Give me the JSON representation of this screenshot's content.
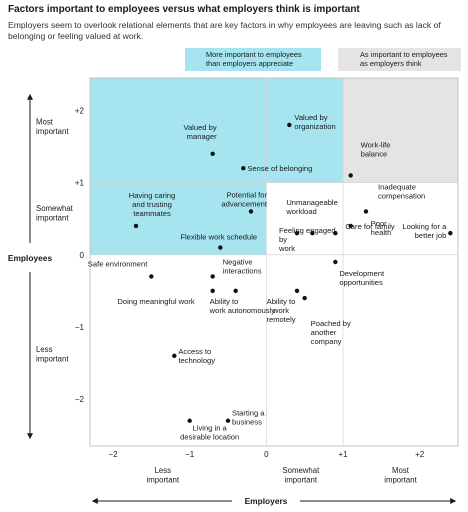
{
  "title": "Factors important to employees versus what employers think is important",
  "subtitle": "Employers seem to overlook relational elements that are key factors in why employees are leaving such as lack of belonging or feeling valued at work.",
  "legend": [
    {
      "label": "More important to employees than employers appreciate",
      "color": "#a6e4f0"
    },
    {
      "label": "As important to employees as employers think",
      "color": "#e4e4e4"
    }
  ],
  "chart_data": {
    "type": "scatter",
    "xlabel": "Employers",
    "ylabel": "Employees",
    "xlim": [
      -2.3,
      2.5
    ],
    "ylim": [
      -2.65,
      2.45
    ],
    "x_ticks": [
      -2,
      -1,
      0,
      1,
      2
    ],
    "x_tick_labels": [
      "−2",
      "−1",
      "0",
      "+1",
      "+2"
    ],
    "y_ticks": [
      2,
      1,
      0,
      -1,
      -2
    ],
    "y_tick_labels": [
      "+2",
      "+1",
      "0",
      "−1",
      "−2"
    ],
    "x_categories": [
      "Less important",
      "Somewhat important",
      "Most important"
    ],
    "y_categories": [
      "Most important",
      "Somewhat important",
      "Less important"
    ],
    "regions": [
      {
        "name": "More important to employees than employers appreciate",
        "color": "#a6e4f0",
        "x": [
          -2.3,
          1.0
        ],
        "y": [
          1.0,
          2.45
        ]
      },
      {
        "name": "More important to employees than employers appreciate",
        "color": "#a6e4f0",
        "x": [
          -2.3,
          0.0
        ],
        "y": [
          0.0,
          1.0
        ]
      },
      {
        "name": "As important to employees as employers think",
        "color": "#e4e4e4",
        "x": [
          1.0,
          2.5
        ],
        "y": [
          1.0,
          2.45
        ]
      }
    ],
    "points": [
      {
        "label": "Valued by organization",
        "x": 0.3,
        "y": 1.8
      },
      {
        "label": "Valued by manager",
        "x": -0.7,
        "y": 1.4
      },
      {
        "label": "Sense of belonging",
        "x": -0.3,
        "y": 1.2
      },
      {
        "label": "Work-life balance",
        "x": 1.1,
        "y": 1.1
      },
      {
        "label": "Potential for advancement",
        "x": -0.2,
        "y": 0.6
      },
      {
        "label": "Inadequate compensation",
        "x": 1.3,
        "y": 0.6
      },
      {
        "label": "Having caring and trusting teammates",
        "x": -1.7,
        "y": 0.4
      },
      {
        "label": "Poor health",
        "x": 1.1,
        "y": 0.4
      },
      {
        "label": "Unmanageable workload",
        "x": 0.6,
        "y": 0.3
      },
      {
        "label": "Looking for a better job",
        "x": 2.4,
        "y": 0.3
      },
      {
        "label": "Flexible work schedule",
        "x": -0.6,
        "y": 0.1
      },
      {
        "label": "Feeling engaged by work",
        "x": 0.4,
        "y": 0.3
      },
      {
        "label": "Care for family",
        "x": 0.9,
        "y": 0.3
      },
      {
        "label": "Safe environment",
        "x": -1.5,
        "y": -0.3
      },
      {
        "label": "Negative interactions",
        "x": -0.7,
        "y": -0.3
      },
      {
        "label": "Development opportunities",
        "x": 0.9,
        "y": -0.1
      },
      {
        "label": "Doing meaningful work",
        "x": -0.7,
        "y": -0.5
      },
      {
        "label": "Ability to work autonomously",
        "x": -0.4,
        "y": -0.5
      },
      {
        "label": "Ability to work remotely",
        "x": 0.4,
        "y": -0.5
      },
      {
        "label": "Poached by another company",
        "x": 0.5,
        "y": -0.6
      },
      {
        "label": "Access to technology",
        "x": -1.2,
        "y": -1.4
      },
      {
        "label": "Starting a business",
        "x": -0.5,
        "y": -2.3
      },
      {
        "label": "Living in a desirable location",
        "x": -1.0,
        "y": -2.3
      }
    ]
  }
}
